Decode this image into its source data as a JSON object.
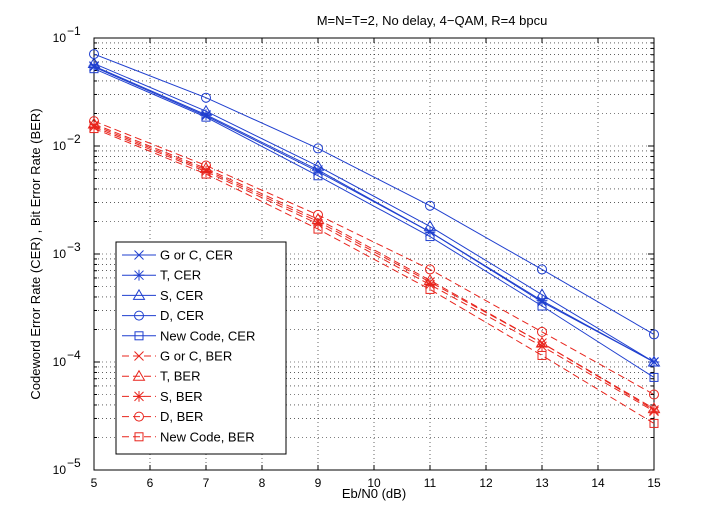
{
  "chart_data": {
    "type": "line",
    "title": "M=N=T=2, No delay, 4−QAM, R=4 bpcu",
    "xlabel": "Eb/N0 (dB)",
    "ylabel": "Codeword Error Rate (CER) , Bit Error Rate (BER)",
    "yscale": "log",
    "xlim": [
      5,
      15
    ],
    "ylim": [
      1e-05,
      0.1
    ],
    "grid": true,
    "legend_position": "lower-left",
    "x_ticks": [
      "5",
      "6",
      "7",
      "8",
      "9",
      "10",
      "11",
      "12",
      "13",
      "14",
      "15"
    ],
    "y_ticks": [
      {
        "base": "10",
        "exp": "−5",
        "value": 1e-05
      },
      {
        "base": "10",
        "exp": "−4",
        "value": 0.0001
      },
      {
        "base": "10",
        "exp": "−3",
        "value": 0.001
      },
      {
        "base": "10",
        "exp": "−2",
        "value": 0.01
      },
      {
        "base": "10",
        "exp": "−1",
        "value": 0.1
      }
    ],
    "x": [
      5,
      7,
      9,
      11,
      13,
      15
    ],
    "series": [
      {
        "name": "G or C, CER",
        "color": "#1f3fcf",
        "dash": "solid",
        "marker": "x",
        "values": [
          0.054,
          0.019,
          0.0058,
          0.0016,
          0.00036,
          0.0001
        ]
      },
      {
        "name": "T, CER",
        "color": "#1f3fcf",
        "dash": "solid",
        "marker": "star",
        "values": [
          0.055,
          0.0195,
          0.006,
          0.0016,
          0.00037,
          0.0001
        ]
      },
      {
        "name": "S, CER",
        "color": "#1f3fcf",
        "dash": "solid",
        "marker": "triangle",
        "values": [
          0.058,
          0.021,
          0.0065,
          0.0018,
          0.00042,
          0.0001
        ]
      },
      {
        "name": "D, CER",
        "color": "#1f3fcf",
        "dash": "solid",
        "marker": "circle",
        "values": [
          0.071,
          0.028,
          0.0095,
          0.0028,
          0.00072,
          0.00018
        ]
      },
      {
        "name": "New Code, CER",
        "color": "#1f3fcf",
        "dash": "solid",
        "marker": "square",
        "values": [
          0.052,
          0.0185,
          0.0053,
          0.00145,
          0.00033,
          7.2e-05
        ]
      },
      {
        "name": "G or C, BER",
        "color": "#e8241c",
        "dash": "dashed",
        "marker": "x",
        "values": [
          0.0155,
          0.006,
          0.002,
          0.00055,
          0.00015,
          3.6e-05
        ]
      },
      {
        "name": "T, BER",
        "color": "#e8241c",
        "dash": "dashed",
        "marker": "triangle",
        "values": [
          0.016,
          0.0062,
          0.0021,
          0.00057,
          0.00015,
          3.7e-05
        ]
      },
      {
        "name": "S, BER",
        "color": "#e8241c",
        "dash": "dashed",
        "marker": "star",
        "values": [
          0.015,
          0.0058,
          0.0019,
          0.00052,
          0.00014,
          3.5e-05
        ]
      },
      {
        "name": "D, BER",
        "color": "#e8241c",
        "dash": "dashed",
        "marker": "circle",
        "values": [
          0.017,
          0.0066,
          0.0023,
          0.00072,
          0.00019,
          5e-05
        ]
      },
      {
        "name": "New Code, BER",
        "color": "#e8241c",
        "dash": "dashed",
        "marker": "square",
        "values": [
          0.0145,
          0.0055,
          0.0017,
          0.00047,
          0.000115,
          2.7e-05
        ]
      }
    ]
  }
}
